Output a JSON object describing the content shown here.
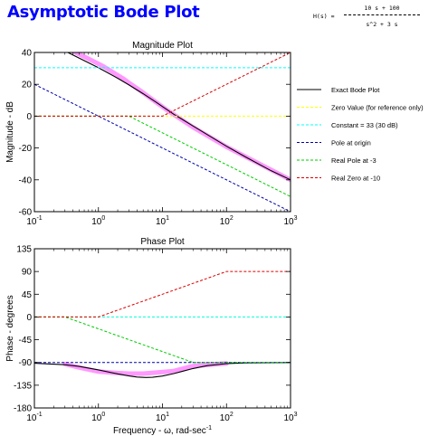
{
  "app": {
    "title": "Asymptotic Bode Plot"
  },
  "transfer_function": {
    "lhs": "H(s) =",
    "numerator": "10 s + 100",
    "denominator": "s^2 + 3 s"
  },
  "legend_colors": [
    "#000000",
    "#ffff00",
    "#00ffff",
    "#0000aa",
    "#00cc00",
    "#dd0000"
  ],
  "chart_data": [
    {
      "type": "line",
      "title": "Magnitude Plot",
      "xlabel": "",
      "ylabel": "Magnitude - dB",
      "xscale": "log",
      "xlim": [
        0.1,
        1000
      ],
      "ylim": [
        -60,
        40
      ],
      "xticks": [
        0.1,
        1,
        10,
        100,
        1000
      ],
      "xtick_labels": [
        {
          "base": "10",
          "exp": "-1"
        },
        {
          "base": "10",
          "exp": "0"
        },
        {
          "base": "10",
          "exp": "1"
        },
        {
          "base": "10",
          "exp": "2"
        },
        {
          "base": "10",
          "exp": "3"
        }
      ],
      "yticks": [
        40,
        20,
        0,
        -20,
        -40,
        -60
      ],
      "ytick_labels": [
        "40",
        "20",
        "0",
        "-20",
        "-40",
        "-60"
      ],
      "grid": false,
      "legend_position": "right",
      "highlight": {
        "color": "#ff99ff",
        "x": [
          0.35,
          0.7,
          1.2,
          2.5,
          3,
          4.5,
          8,
          12,
          30,
          100,
          1000
        ],
        "y": [
          41.9,
          36,
          31.2,
          23.3,
          20.9,
          16.0,
          8.7,
          3.6,
          -7.0,
          -19.3,
          -40.0
        ]
      },
      "series": [
        {
          "name": "Exact Bode Plot",
          "color": "#000000",
          "dash": "",
          "width": 1.1,
          "x": [
            0.3,
            0.5,
            1,
            2,
            3,
            5,
            8,
            10,
            15,
            20,
            30,
            50,
            100,
            200,
            500,
            1000
          ],
          "y": [
            40.9,
            36.4,
            30.4,
            23.8,
            19.6,
            14.1,
            8.7,
            6.0,
            1.2,
            -1.8,
            -6.2,
            -11.6,
            -18.9,
            -25.7,
            -34.3,
            -40.0
          ]
        },
        {
          "name": "Zero Value (for reference only)",
          "color": "#ffff00",
          "dash": "3,2",
          "width": 1,
          "x": [
            0.1,
            1000
          ],
          "y": [
            0,
            0
          ]
        },
        {
          "name": "Constant = 33 (30 dB)",
          "color": "#00ffff",
          "dash": "3,2",
          "width": 1,
          "x": [
            0.1,
            1000
          ],
          "y": [
            30.4,
            30.4
          ]
        },
        {
          "name": "Pole at origin",
          "color": "#0000aa",
          "dash": "3,2",
          "width": 1,
          "x": [
            0.1,
            1000
          ],
          "y": [
            20,
            -60
          ]
        },
        {
          "name": "Real Pole at -3",
          "color": "#00cc00",
          "dash": "3,2",
          "width": 1,
          "x": [
            0.1,
            3,
            1000
          ],
          "y": [
            0,
            0,
            -50.5
          ]
        },
        {
          "name": "Real Zero at -10",
          "color": "#dd0000",
          "dash": "3,2",
          "width": 1,
          "x": [
            0.1,
            10,
            1000
          ],
          "y": [
            0,
            0,
            40
          ]
        }
      ]
    },
    {
      "type": "line",
      "title": "Phase Plot",
      "xlabel": "Frequency - ω, rad-sec",
      "xlabel_sup": "-1",
      "ylabel": "Phase - degrees",
      "xscale": "log",
      "xlim": [
        0.1,
        1000
      ],
      "ylim": [
        -180,
        135
      ],
      "xticks": [
        0.1,
        1,
        10,
        100,
        1000
      ],
      "xtick_labels": [
        {
          "base": "10",
          "exp": "-1"
        },
        {
          "base": "10",
          "exp": "0"
        },
        {
          "base": "10",
          "exp": "1"
        },
        {
          "base": "10",
          "exp": "2"
        },
        {
          "base": "10",
          "exp": "3"
        }
      ],
      "yticks": [
        135,
        90,
        45,
        0,
        -45,
        -90,
        -135,
        -180
      ],
      "ytick_labels": [
        "135",
        "90",
        "45",
        "0",
        "-45",
        "-90",
        "-135",
        "-180"
      ],
      "grid": false,
      "highlight": {
        "color": "#ff99ff",
        "x": [
          0.3,
          0.5,
          1,
          2,
          3,
          5,
          8,
          15,
          30,
          100
        ],
        "y": [
          -93,
          -100,
          -108,
          -111,
          -112,
          -112,
          -110,
          -107,
          -97,
          -92
        ]
      },
      "series": [
        {
          "name": "Exact Bode Plot",
          "color": "#000000",
          "dash": "",
          "width": 1.1,
          "x": [
            0.1,
            0.3,
            0.5,
            1,
            2,
            3,
            4,
            5.5,
            7,
            10,
            15,
            20,
            30,
            50,
            100,
            200,
            1000
          ],
          "y": [
            -91.5,
            -94.5,
            -97.9,
            -104.6,
            -112.6,
            -116.6,
            -118.8,
            -119.7,
            -119.3,
            -116.9,
            -111.9,
            -107.8,
            -101.9,
            -96.2,
            -92.3,
            -90.9,
            -90.1
          ]
        },
        {
          "name": "Zero Value (for reference only)",
          "color": "#ffff00",
          "dash": "3,2",
          "width": 1,
          "x": [
            0.1,
            1000
          ],
          "y": [
            0,
            0
          ]
        },
        {
          "name": "Constant = 33 (30 dB)",
          "color": "#00ffff",
          "dash": "3,2",
          "width": 1,
          "x": [
            0.1,
            1000
          ],
          "y": [
            0,
            0
          ]
        },
        {
          "name": "Pole at origin",
          "color": "#0000aa",
          "dash": "3,2",
          "width": 1,
          "x": [
            0.1,
            1000
          ],
          "y": [
            -90,
            -90
          ]
        },
        {
          "name": "Real Pole at -3",
          "color": "#00cc00",
          "dash": "3,2",
          "width": 1,
          "x": [
            0.1,
            0.3,
            30,
            1000
          ],
          "y": [
            0,
            0,
            -90,
            -90
          ]
        },
        {
          "name": "Real Zero at -10",
          "color": "#dd0000",
          "dash": "3,2",
          "width": 1,
          "x": [
            0.1,
            1,
            100,
            1000
          ],
          "y": [
            0,
            0,
            90,
            90
          ]
        }
      ]
    }
  ]
}
